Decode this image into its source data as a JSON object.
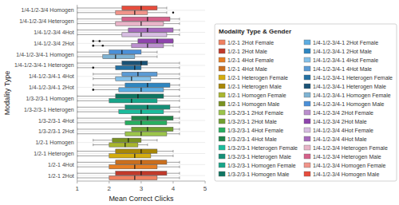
{
  "chart_data": {
    "type": "box",
    "orientation": "horizontal",
    "x_label": "Mean Correct Clicks",
    "y_label": "Modality Type",
    "xlim": [
      1,
      5
    ],
    "xticks": [
      1,
      2,
      3,
      4,
      5
    ],
    "grid": true,
    "legend": "right",
    "legend_title": "Modality Type & Gender",
    "categories": [
      "1/2-1 2Hot",
      "1/2-1 4Hot",
      "1/2-1 Heterogen",
      "1/2-1 Homogen",
      "1/3-2/3-1 2Hot",
      "1/3-2/3-1 4Hot",
      "1/3-2/3-1 Heterogen",
      "1/3-2/3-1 Homogen",
      "1/4-1/2-3/4-1 2Hot",
      "1/4-1/2-3/4-1 4Hot",
      "1/4-1/2-3/4-1 Heterogen",
      "1/4-1/2-3/4-1 Homogen",
      "1/4-1/2-3/4 2Hot",
      "1/4-1/2-3/4 4Hot",
      "1/4-1/2-3/4 Heterogen",
      "1/4-1/2-3/4 Homogen"
    ],
    "series": [
      {
        "names": [
          "1/2-1 2Hot Female",
          "1/2-1 4Hot Female",
          "1/2-1 Heterogen Female",
          "1/2-1 Homogen Female",
          "1/3-2/3-1 2Hot Female",
          "1/3-2/3-1 4Hot Female",
          "1/3-2/3-1 Heterogen Female",
          "1/3-2/3-1 Homogen Female",
          "1/4-1/2-3/4-1 2Hot Female",
          "1/4-1/2-3/4-1 4Hot Female",
          "1/4-1/2-3/4-1 Heterogen Female",
          "1/4-1/2-3/4-1 Homogen Female",
          "1/4-1/2-3/4 2Hot Female",
          "1/4-1/2-3/4 4Hot Female",
          "1/4-1/2-3/4 Heterogen Female",
          "1/4-1/2-3/4 Homogen Female"
        ],
        "colors": [
          "#F08060",
          "#E67E22",
          "#D4AC0D",
          "#A9B62D",
          "#9BC44A",
          "#27AE60",
          "#1ABC9C",
          "#17A589",
          "#5DADE2",
          "#85C1E9",
          "#2471A3",
          "#7FB3D3",
          "#BB8FCE",
          "#D7BDE2",
          "#E8B4C8",
          "#F1948A"
        ],
        "q1": [
          2.0,
          2.0,
          2.0,
          2.0,
          2.5,
          2.5,
          2.3,
          2.0,
          2.3,
          2.2,
          2.2,
          1.8,
          2.7,
          2.4,
          2.2,
          2.2
        ],
        "median": [
          2.8,
          2.8,
          2.8,
          2.5,
          3.0,
          3.0,
          3.0,
          2.7,
          3.0,
          2.7,
          2.8,
          2.2,
          3.2,
          3.0,
          3.0,
          2.8
        ],
        "q3": [
          3.5,
          3.5,
          3.3,
          2.9,
          3.8,
          3.8,
          3.7,
          3.5,
          3.7,
          3.3,
          3.0,
          2.8,
          3.7,
          3.8,
          3.7,
          3.2
        ],
        "whisker_low": [
          1.0,
          1.0,
          1.0,
          1.5,
          1.0,
          1.0,
          1.0,
          1.0,
          1.5,
          1.5,
          1.0,
          1.0,
          1.5,
          1.0,
          1.0,
          1.0
        ],
        "whisker_high": [
          4.2,
          4.2,
          4.0,
          3.2,
          4.2,
          4.2,
          4.2,
          4.2,
          4.2,
          4.2,
          4.2,
          3.5,
          4.0,
          4.2,
          4.2,
          3.8
        ],
        "fliers": [
          [],
          [],
          [],
          [],
          [],
          [],
          [],
          [],
          [
            1.5
          ],
          [],
          [
            1.5
          ],
          [],
          [
            1.5,
            1.8
          ],
          [],
          [],
          [
            4.0
          ]
        ]
      },
      {
        "names": [
          "1/2-1 2Hot Male",
          "1/2-1 4Hot Male",
          "1/2-1 Heterogen Male",
          "1/2-1 Homogen Male",
          "1/3-2/3-1 2Hot Male",
          "1/3-2/3-1 4Hot Male",
          "1/3-2/3-1 Heterogen Male",
          "1/3-2/3-1 Homogen Male",
          "1/4-1/2-3/4-1 2Hot Male",
          "1/4-1/2-3/4-1 4Hot Male",
          "1/4-1/2-3/4-1 Heterogen Male",
          "1/4-1/2-3/4-1 Homogen Male",
          "1/4-1/2-3/4 2Hot Male",
          "1/4-1/2-3/4 4Hot Male",
          "1/4-1/2-3/4 Heterogen Male",
          "1/4-1/2-3/4 Homogen Male"
        ],
        "colors": [
          "#C0392B",
          "#CA6F1E",
          "#A88706",
          "#7A9320",
          "#70A030",
          "#1E8449",
          "#148F77",
          "#0E7561",
          "#2E86C1",
          "#5B9BD5",
          "#1A5276",
          "#4A90D9",
          "#8E44AD",
          "#A569BD",
          "#D5618A",
          "#E74C3C"
        ],
        "q1": [
          2.2,
          2.2,
          2.2,
          2.1,
          2.7,
          2.7,
          2.5,
          2.2,
          2.5,
          2.4,
          2.4,
          2.0,
          2.9,
          2.6,
          2.4,
          2.4
        ],
        "median": [
          3.0,
          3.0,
          3.0,
          2.6,
          3.2,
          3.2,
          3.2,
          2.9,
          3.2,
          2.9,
          3.0,
          2.4,
          3.5,
          3.2,
          3.2,
          3.0
        ],
        "q3": [
          3.8,
          3.8,
          3.5,
          3.0,
          4.0,
          4.0,
          3.9,
          3.7,
          3.9,
          3.5,
          3.2,
          3.0,
          4.0,
          4.0,
          3.9,
          3.5
        ],
        "whisker_low": [
          1.0,
          1.0,
          1.0,
          1.5,
          1.0,
          1.0,
          1.0,
          1.0,
          1.5,
          1.5,
          1.0,
          1.0,
          1.5,
          1.0,
          1.0,
          1.0
        ],
        "whisker_high": [
          4.2,
          4.2,
          4.0,
          3.5,
          4.2,
          4.2,
          4.2,
          4.2,
          4.2,
          4.2,
          4.2,
          3.5,
          4.0,
          4.2,
          4.2,
          3.8
        ],
        "fliers": [
          [],
          [],
          [],
          [],
          [],
          [],
          [],
          [],
          [],
          [],
          [],
          [],
          [
            1.5,
            1.7
          ],
          [],
          [],
          []
        ]
      }
    ]
  }
}
